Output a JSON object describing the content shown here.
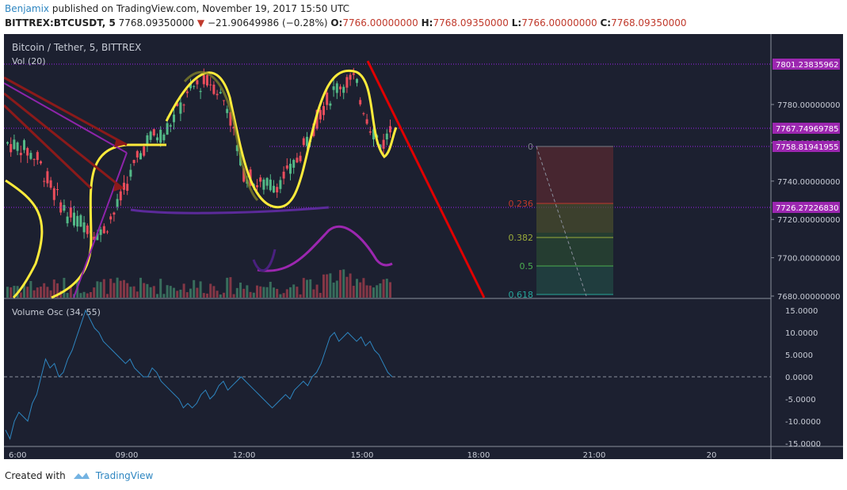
{
  "header": {
    "author": "Benjamix",
    "published_text": "published on TradingView.com, November 19, 2017 15:50 UTC",
    "symbol": "BITTREX:BTCUSDT, 5",
    "price": "7768.09350000",
    "change": "−21.90649986 (−0.28%)",
    "o_label": "O:",
    "o_value": "7766.00000000",
    "h_label": "H:",
    "h_value": "7768.09350000",
    "l_label": "L:",
    "l_value": "7766.00000000",
    "c_label": "C:",
    "c_value": "7768.09350000"
  },
  "footer": {
    "created_with": "Created with",
    "brand": "TradingView"
  },
  "chart_data": [
    {
      "type": "candlestick",
      "title": "Bitcoin / Tether, 5, BITTREX",
      "volume_label": "Vol (20)",
      "x_ticks": [
        "6:00",
        "09:00",
        "12:00",
        "15:00",
        "18:00",
        "21:00",
        "20"
      ],
      "y_ticks": [
        "7780.00000000",
        "7760.00000000",
        "7740.00000000",
        "7720.00000000",
        "7700.00000000",
        "7680.00000000"
      ],
      "price_labels": [
        "7801.23835962",
        "7767.74969785",
        "7758.81941955",
        "7726.27226830"
      ],
      "fib_levels": [
        {
          "level": "0",
          "color": "#787b86"
        },
        {
          "level": "0.236",
          "color": "#c0392b"
        },
        {
          "level": "0.382",
          "color": "#9aab3a"
        },
        {
          "level": "0.5",
          "color": "#4caf50"
        },
        {
          "level": "0.618",
          "color": "#26a69a"
        }
      ],
      "colors": {
        "up": "#53b987",
        "down": "#eb4d5c",
        "background": "#1c2030",
        "annotation": "#ffeb3b",
        "trend": "#e00000",
        "level_line": "#a020f0"
      }
    },
    {
      "type": "line",
      "title": "Volume Osc (34, 55)",
      "y_ticks": [
        "15.0000",
        "10.0000",
        "5.0000",
        "0.0000",
        "-5.0000",
        "-10.0000",
        "-15.0000"
      ],
      "values": [
        -12,
        -14,
        -10,
        -8,
        -9,
        -10,
        -6,
        -4,
        0,
        4,
        2,
        3,
        0,
        1,
        4,
        6,
        9,
        12,
        15,
        13,
        11,
        10,
        8,
        7,
        6,
        5,
        4,
        3,
        4,
        2,
        1,
        0,
        0,
        2,
        1,
        -1,
        -2,
        -3,
        -4,
        -5,
        -7,
        -6,
        -7,
        -6,
        -4,
        -3,
        -5,
        -4,
        -2,
        -1,
        -3,
        -2,
        -1,
        0,
        -1,
        -2,
        -3,
        -4,
        -5,
        -6,
        -7,
        -6,
        -5,
        -4,
        -5,
        -3,
        -2,
        -1,
        -2,
        0,
        1,
        3,
        6,
        9,
        10,
        8,
        9,
        10,
        9,
        8,
        9,
        7,
        8,
        6,
        5,
        3,
        1,
        0
      ]
    }
  ]
}
